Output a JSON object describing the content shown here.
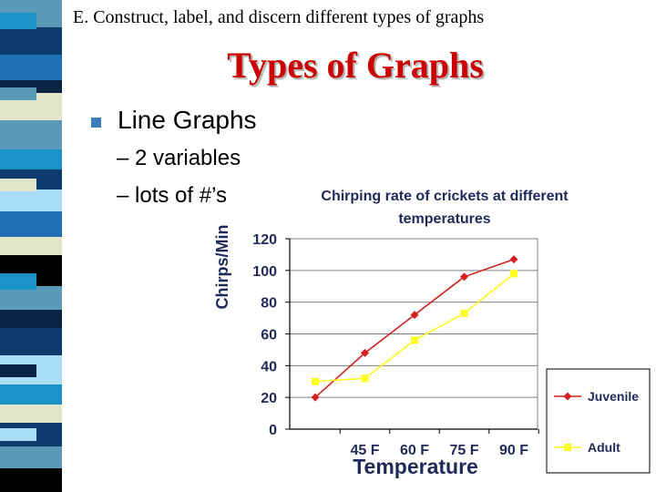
{
  "header": {
    "line": "E.  Construct, label, and discern different types of graphs"
  },
  "slide": {
    "title": "Types of Graphs",
    "bullet": "Line Graphs",
    "subs": [
      "– 2 variables",
      "– lots of #’s"
    ]
  },
  "colors": {
    "title": "#cc0000",
    "bullet": "#3a7fb8",
    "juvenile": "#d42020",
    "adult": "#ffff22"
  },
  "chart_data": {
    "type": "line",
    "title": [
      "Chirping rate of crickets at different",
      "temperatures"
    ],
    "xlabel": "Temperature",
    "ylabel": "Chirps/Min",
    "ylim": [
      0,
      120
    ],
    "yticks": [
      0,
      20,
      40,
      60,
      80,
      100,
      120
    ],
    "x": [
      "",
      "45 F",
      "60 F",
      "75 F",
      "90 F"
    ],
    "grid": true,
    "legend": "bottom-right",
    "series": [
      {
        "name": "Juvenile",
        "values": [
          20,
          48,
          72,
          96,
          107
        ],
        "color": "#d42020",
        "marker": "diamond"
      },
      {
        "name": "Adult",
        "values": [
          30,
          32,
          56,
          73,
          98
        ],
        "color": "#ffff22",
        "marker": "square"
      }
    ]
  }
}
